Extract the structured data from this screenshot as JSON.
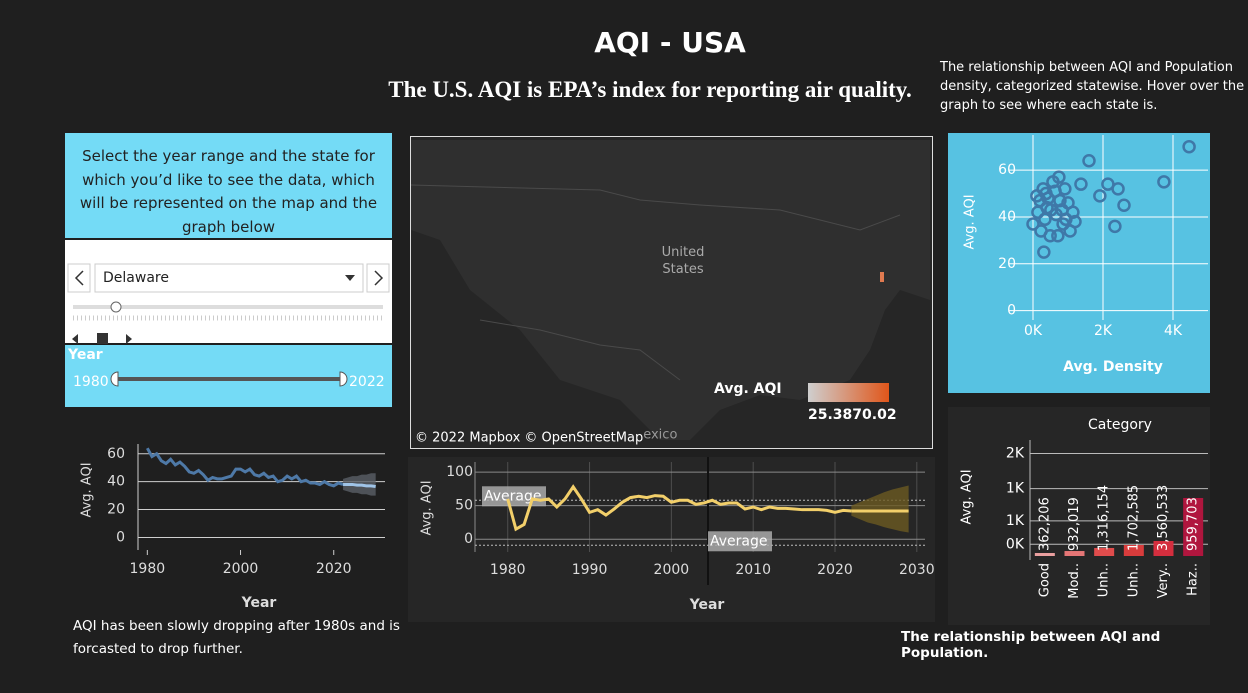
{
  "header": {
    "title": "AQI - USA",
    "subtitle": "The U.S. AQI is EPA’s index for reporting air quality.",
    "scatter_note": "The relationship between AQI and Population density, categorized statewise. Hover over the graph to see where each state is."
  },
  "controls": {
    "instructions": "Select the year range and the state for which you’d like to see the data, which will be represented on the map and the graph below",
    "state": "Delaware",
    "year_label": "Year",
    "year_start": 1980,
    "year_end": 2022
  },
  "map": {
    "country_label": "United States",
    "other_label": "Mexico",
    "attribution": "© 2022 Mapbox © OpenStreetMap",
    "legend_title": "Avg. AQI",
    "legend_min": 25.38,
    "legend_max": 70.02
  },
  "notes": {
    "line_note": "AQI has been slowly dropping after 1980s and is forcasted to drop further.",
    "bar_note": "The relationship between AQI and Population."
  },
  "chart_data": [
    {
      "type": "line",
      "x_label": "Year",
      "y_label": "Avg. AQI",
      "color": "#4e79a7",
      "grid": true,
      "x": [
        1980,
        1981,
        1982,
        1983,
        1984,
        1985,
        1986,
        1987,
        1988,
        1989,
        1990,
        1991,
        1992,
        1993,
        1994,
        1995,
        1996,
        1997,
        1998,
        1999,
        2000,
        2001,
        2002,
        2003,
        2004,
        2005,
        2006,
        2007,
        2008,
        2009,
        2010,
        2011,
        2012,
        2013,
        2014,
        2015,
        2016,
        2017,
        2018,
        2019,
        2020,
        2021,
        2022
      ],
      "values": [
        64,
        58,
        60,
        55,
        53,
        56,
        52,
        54,
        51,
        47,
        46,
        48,
        45,
        41,
        43,
        42,
        42,
        43,
        44,
        49,
        49,
        47,
        49,
        45,
        44,
        46,
        43,
        44,
        40,
        41,
        44,
        42,
        44,
        40,
        41,
        39,
        39,
        38,
        40,
        38,
        37,
        39,
        38
      ],
      "forecast": {
        "color": "#9fc3e6",
        "band_color": "#5a5f66",
        "x": [
          2022,
          2023,
          2024,
          2025,
          2026,
          2027,
          2028,
          2029
        ],
        "values": [
          38,
          38,
          38,
          37.5,
          37.5,
          37,
          37,
          36.5
        ],
        "lower": [
          34,
          33,
          32,
          32,
          31,
          31,
          30,
          30
        ],
        "upper": [
          42,
          43,
          44,
          44,
          45,
          45,
          46,
          46
        ]
      },
      "xlim": [
        1978,
        2031
      ],
      "ylim": [
        -9,
        67
      ],
      "xticks": [
        1980,
        2000,
        2020
      ],
      "yticks": [
        0,
        20,
        40,
        60
      ]
    },
    {
      "type": "line",
      "x_label": "Year",
      "y_label": "Avg. AQI",
      "color": "#f2cf6a",
      "grid": true,
      "x": [
        1980,
        1981,
        1982,
        1983,
        1984,
        1985,
        1986,
        1987,
        1988,
        1989,
        1990,
        1991,
        1992,
        1993,
        1994,
        1995,
        1996,
        1997,
        1998,
        1999,
        2000,
        2001,
        2002,
        2003,
        2004,
        2005,
        2006,
        2007,
        2008,
        2009,
        2010,
        2011,
        2012,
        2013,
        2014,
        2015,
        2016,
        2017,
        2018,
        2019,
        2020,
        2021,
        2022
      ],
      "values": [
        60,
        15,
        22,
        60,
        58,
        60,
        48,
        60,
        78,
        60,
        40,
        44,
        36,
        45,
        55,
        62,
        64,
        62,
        65,
        64,
        55,
        58,
        58,
        52,
        54,
        58,
        52,
        54,
        54,
        45,
        48,
        44,
        48,
        46,
        46,
        45,
        44,
        44,
        44,
        43,
        40,
        43,
        42
      ],
      "forecast": {
        "color": "#f2cf6a",
        "band_color": "#6b5a22",
        "x": [
          2022,
          2023,
          2024,
          2025,
          2026,
          2027,
          2028,
          2029
        ],
        "values": [
          42,
          42,
          42,
          42,
          42,
          42,
          42,
          42
        ],
        "lower": [
          35,
          30,
          25,
          22,
          18,
          15,
          12,
          10
        ],
        "upper": [
          50,
          55,
          60,
          65,
          70,
          74,
          77,
          80
        ]
      },
      "references": [
        {
          "label": "Average",
          "value": 58
        },
        {
          "label": "Average",
          "value": -9
        }
      ],
      "xlim": [
        1976,
        2031
      ],
      "ylim": [
        -19,
        115
      ],
      "xticks": [
        1980,
        1990,
        2000,
        2010,
        2020,
        2030
      ],
      "yticks": [
        0,
        50,
        100
      ]
    },
    {
      "type": "scatter",
      "x_label": "Avg. Density",
      "y_label": "Avg. AQI",
      "color": "#3f78a8",
      "grid": true,
      "x": [
        4460,
        3740,
        1600,
        1370,
        2140,
        2430,
        1910,
        2600,
        2340,
        740,
        0,
        310,
        290,
        430,
        200,
        630,
        830,
        940,
        1060,
        1140,
        510,
        340,
        490,
        710,
        140,
        770,
        570,
        400,
        860,
        1200,
        230,
        370,
        910,
        660,
        1000,
        110
      ],
      "values": [
        70,
        55,
        64,
        54,
        54,
        52,
        49,
        45,
        36,
        57,
        37,
        25,
        52,
        48,
        47,
        51,
        43,
        39,
        34,
        42,
        43,
        39,
        32,
        32,
        42,
        47,
        55,
        44,
        37,
        38,
        34,
        50,
        52,
        41,
        46,
        49
      ],
      "xlim": [
        -700,
        5000
      ],
      "ylim": [
        -4,
        75
      ],
      "xticks": [
        {
          "value": 0,
          "label": "0K"
        },
        {
          "value": 2000,
          "label": "2K"
        },
        {
          "value": 4000,
          "label": "4K"
        }
      ],
      "yticks": [
        0,
        20,
        40,
        60
      ]
    },
    {
      "type": "bar",
      "title": "Category",
      "y_label": "Avg. AQI",
      "grid": true,
      "categories": [
        "Good",
        "Mod..",
        "Unh..",
        "Unh..",
        "Very..",
        "Haz.."
      ],
      "values": [
        51,
        85,
        137,
        188,
        256,
        990
      ],
      "bar_texts": [
        "362,206",
        "932,019",
        "1,316,154",
        "1,702,585",
        "3,560,533",
        "959,703"
      ],
      "colors": [
        "#eaa0a0",
        "#e57676",
        "#e04c4c",
        "#d83c3c",
        "#d42e3e",
        "#b0163e"
      ],
      "ylim": [
        0,
        2150
      ],
      "yticks": [
        {
          "value": 200,
          "label": "0K"
        },
        {
          "value": 600,
          "label": "1K"
        },
        {
          "value": 1150,
          "label": "1K"
        },
        {
          "value": 1750,
          "label": "2K"
        }
      ]
    }
  ]
}
